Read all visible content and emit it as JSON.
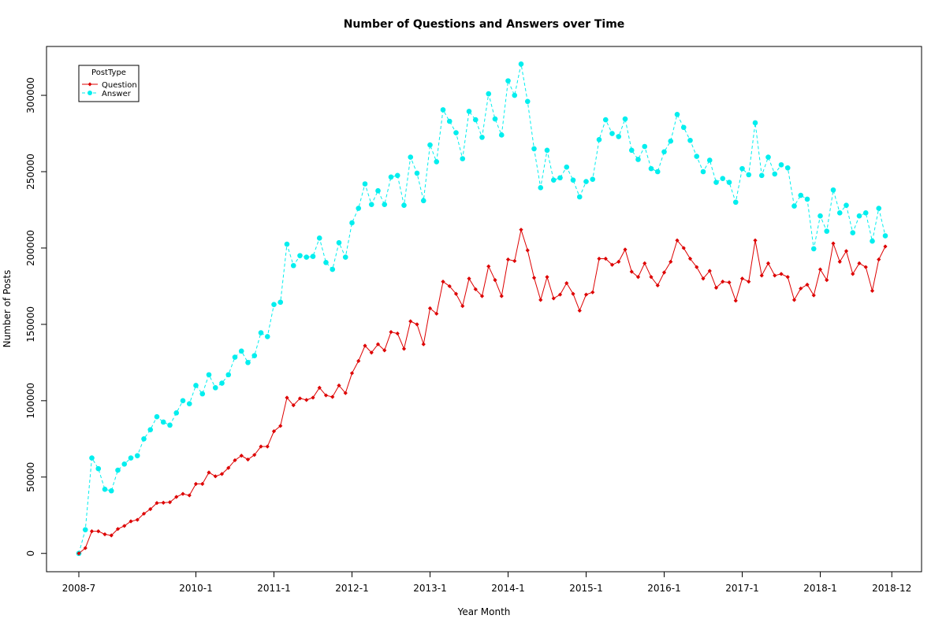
{
  "chart_data": {
    "type": "line",
    "title": "Number of Questions and Answers over Time",
    "xlabel": "Year Month",
    "ylabel": "Number of Posts",
    "x_start": "2008-7",
    "x_end": "2018-12",
    "x_ticks": [
      "2008-7",
      "2010-1",
      "2011-1",
      "2012-1",
      "2013-1",
      "2014-1",
      "2015-1",
      "2016-1",
      "2017-1",
      "2018-1",
      "2018-12"
    ],
    "y_ticks": [
      0,
      50000,
      100000,
      150000,
      200000,
      250000,
      300000
    ],
    "ylim": [
      -12000,
      332000
    ],
    "grid": false,
    "legend": {
      "title": "PostType",
      "position": "top-left"
    },
    "series": [
      {
        "name": "Question",
        "color": "#DD0000",
        "line_style": "solid",
        "marker": "diamond",
        "values": [
          0,
          3500,
          14500,
          14500,
          12500,
          11800,
          16000,
          18000,
          21000,
          22000,
          26000,
          29000,
          33000,
          33200,
          33500,
          37000,
          39000,
          38000,
          45500,
          45500,
          53000,
          50500,
          52000,
          56000,
          61000,
          64000,
          61500,
          64500,
          70000,
          70000,
          80000,
          83500,
          102000,
          97000,
          101500,
          100500,
          102000,
          108500,
          103500,
          102500,
          110000,
          105000,
          118000,
          126000,
          136000,
          131500,
          137000,
          133000,
          145000,
          144000,
          134000,
          152000,
          150000,
          137000,
          160500,
          157000,
          178000,
          175000,
          170000,
          162000,
          180000,
          173000,
          168500,
          188000,
          179000,
          168500,
          192500,
          191500,
          212000,
          198500,
          180500,
          166000,
          181000,
          167000,
          169500,
          177000,
          170000,
          159000,
          169500,
          171000,
          193000,
          193000,
          189000,
          191000,
          199000,
          184500,
          181000,
          190000,
          181000,
          175500,
          184000,
          191000,
          205000,
          200000,
          193000,
          187500,
          180000,
          185000,
          174000,
          178000,
          177500,
          165500,
          180000,
          178000,
          205000,
          182000,
          190000,
          182000,
          183000,
          181000,
          166000,
          173500,
          176000,
          169000,
          186000,
          179000,
          203000,
          191000,
          198000,
          183000,
          190000,
          187500,
          172000,
          192500,
          201000
        ]
      },
      {
        "name": "Answer",
        "color": "#00EEEE",
        "line_style": "dashed",
        "marker": "circle",
        "values": [
          0,
          15500,
          62500,
          55500,
          42000,
          41000,
          54500,
          58500,
          62500,
          64000,
          75000,
          81000,
          89500,
          86000,
          84000,
          92000,
          100000,
          98000,
          110000,
          104500,
          117000,
          108500,
          111500,
          117000,
          128500,
          132500,
          125000,
          129500,
          144500,
          142000,
          163000,
          164500,
          202500,
          188500,
          195000,
          194000,
          194500,
          206500,
          190500,
          186000,
          203500,
          194000,
          216500,
          226000,
          242000,
          228500,
          237500,
          228500,
          246500,
          247500,
          228000,
          259500,
          249000,
          231000,
          267500,
          256500,
          290500,
          283000,
          275500,
          258500,
          289500,
          284000,
          272500,
          301000,
          284500,
          274000,
          309500,
          300000,
          320500,
          296000,
          265000,
          239500,
          264000,
          244500,
          246000,
          253000,
          244500,
          233500,
          243500,
          245000,
          271000,
          284000,
          275000,
          273000,
          284500,
          264000,
          258000,
          266500,
          252000,
          250000,
          263000,
          270000,
          287500,
          279000,
          270500,
          260000,
          250000,
          257500,
          243000,
          245500,
          243000,
          230000,
          252000,
          248000,
          282000,
          247500,
          259500,
          248500,
          254500,
          252500,
          227500,
          234500,
          232000,
          199500,
          221000,
          211000,
          238000,
          223000,
          228000,
          210000,
          221000,
          223000,
          204500,
          226000,
          208000
        ]
      }
    ]
  }
}
